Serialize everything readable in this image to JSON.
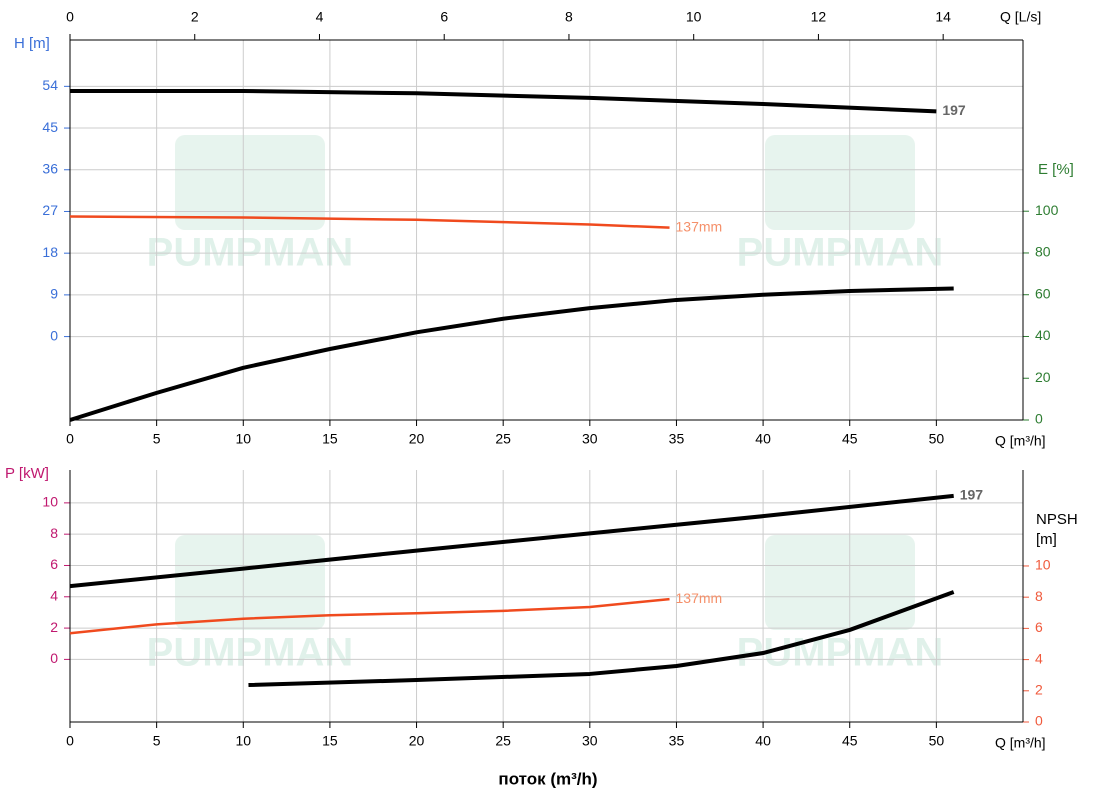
{
  "watermark": "PUMPMAN",
  "chart_data": [
    {
      "type": "line",
      "x_label": "Q [m³/h]",
      "xlim": [
        0,
        55
      ],
      "xticks": [
        0,
        5,
        10,
        15,
        20,
        25,
        30,
        35,
        40,
        45,
        50
      ],
      "x2_label": "Q [L/s]",
      "x2lim": [
        0,
        15.28
      ],
      "x2ticks": [
        0,
        2,
        4,
        6,
        8,
        10,
        12,
        14
      ],
      "y_label": "H [m]",
      "y_color": "#3a6fd8",
      "ylim": [
        -18,
        64
      ],
      "yticks": [
        0,
        9,
        18,
        27,
        36,
        45,
        54
      ],
      "y2_label": "E [%]",
      "y2_color": "#2e7d32",
      "y2lim": [
        0,
        182
      ],
      "y2ticks": [
        0,
        20,
        40,
        60,
        80,
        100
      ],
      "grid": true,
      "series": [
        {
          "name": "197",
          "color": "#000000",
          "x": [
            0,
            10,
            20,
            30,
            40,
            50
          ],
          "values": [
            53,
            53,
            52.5,
            51.5,
            50.2,
            48.6
          ]
        },
        {
          "name": "137mm",
          "color": "#f04a1e",
          "x": [
            0,
            10,
            20,
            30,
            34.6
          ],
          "values": [
            25.9,
            25.7,
            25.2,
            24.2,
            23.5
          ]
        },
        {
          "color": "#000000",
          "axis": "y2",
          "x": [
            0,
            5,
            10,
            15,
            20,
            25,
            30,
            35,
            40,
            45,
            51
          ],
          "values": [
            0,
            13,
            25,
            34,
            42,
            48.5,
            53.6,
            57.5,
            60,
            61.8,
            63
          ]
        }
      ]
    },
    {
      "type": "line",
      "x_label": "Q [m³/h]",
      "xlim": [
        0,
        55
      ],
      "xticks": [
        0,
        5,
        10,
        15,
        20,
        25,
        30,
        35,
        40,
        45,
        50
      ],
      "x_title": "поток (m³/h)",
      "y_label": "P [kW]",
      "y_color": "#c0186f",
      "ylim": [
        -4,
        12.1
      ],
      "yticks": [
        0,
        2,
        4,
        6,
        8,
        10
      ],
      "y2_label": "NPSH [m]",
      "y2_color": "#f05a3c",
      "y2lim": [
        0,
        16.15
      ],
      "y2ticks": [
        0,
        2,
        4,
        6,
        8,
        10
      ],
      "grid": true,
      "series": [
        {
          "name": "197",
          "color": "#000000",
          "x": [
            0,
            10,
            20,
            30,
            40,
            51
          ],
          "values": [
            4.68,
            5.8,
            6.95,
            8.05,
            9.15,
            10.45
          ]
        },
        {
          "name": "137mm",
          "color": "#f04a1e",
          "x": [
            0,
            5,
            10,
            15,
            20,
            25,
            30,
            34.6
          ],
          "values": [
            1.67,
            2.24,
            2.6,
            2.82,
            2.95,
            3.1,
            3.35,
            3.85
          ]
        },
        {
          "color": "#000000",
          "axis": "y2",
          "x": [
            10.3,
            20,
            30,
            35,
            40,
            45,
            51
          ],
          "values": [
            2.37,
            2.69,
            3.08,
            3.59,
            4.42,
            5.9,
            8.33
          ]
        }
      ]
    }
  ]
}
